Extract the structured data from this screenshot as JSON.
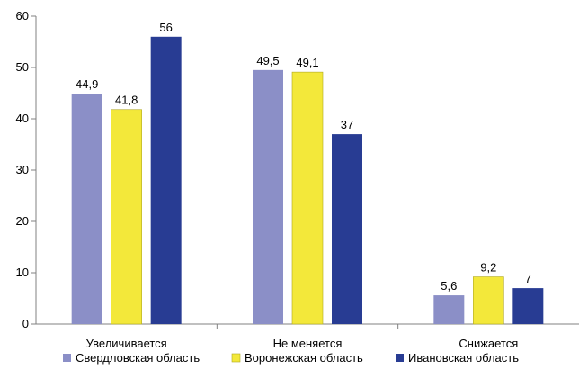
{
  "chart_data": {
    "type": "bar",
    "categories": [
      "Увеличивается",
      "Не меняется",
      "Снижается"
    ],
    "series": [
      {
        "name": "Свердловская область",
        "values": [
          44.9,
          49.5,
          5.6
        ],
        "labels": [
          "44,9",
          "49,5",
          "5,6"
        ],
        "color": "#8b8fc7"
      },
      {
        "name": "Воронежская область",
        "values": [
          41.8,
          49.1,
          9.2
        ],
        "labels": [
          "41,8",
          "49,1",
          "9,2"
        ],
        "color": "#f3e83a"
      },
      {
        "name": "Ивановская область",
        "values": [
          56,
          37,
          7
        ],
        "labels": [
          "56",
          "37",
          "7"
        ],
        "color": "#283c93"
      }
    ],
    "ylim": [
      0,
      60
    ],
    "yticks": [
      0,
      10,
      20,
      30,
      40,
      50,
      60
    ],
    "grid": false,
    "legend_position": "bottom",
    "title": "",
    "xlabel": "",
    "ylabel": ""
  }
}
